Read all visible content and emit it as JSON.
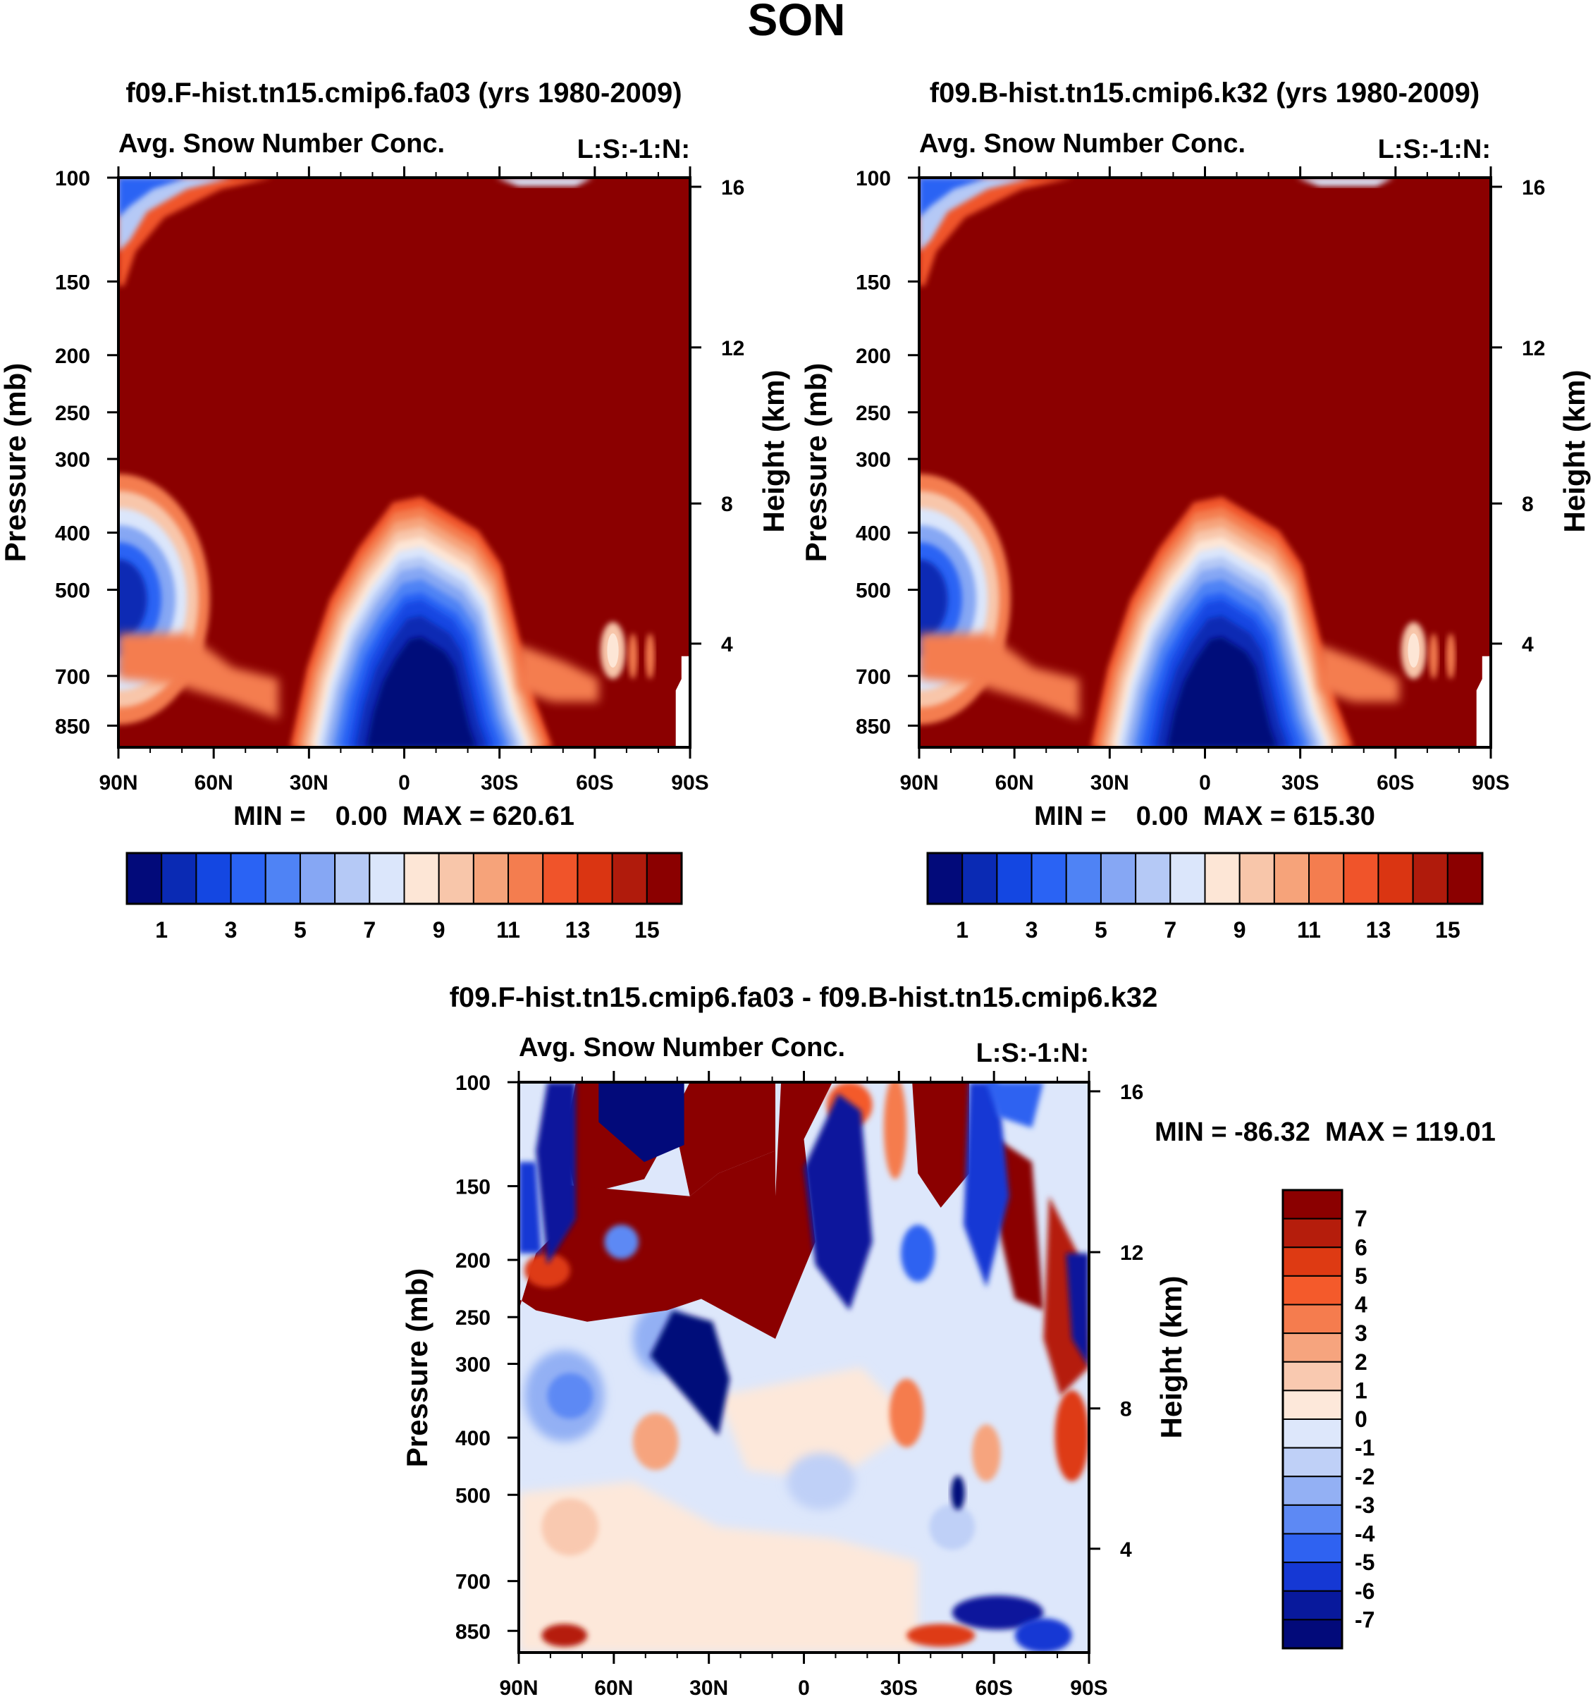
{
  "figure": {
    "title": "SON"
  },
  "panels": [
    {
      "id": "left",
      "case_title": "f09.F-hist.tn15.cmip6.fa03 (yrs 1980-2009)",
      "left_label": "Avg. Snow Number Conc.",
      "right_label": "L:S:-1:N:",
      "min_max": "MIN =    0.00  MAX = 620.61"
    },
    {
      "id": "right",
      "case_title": "f09.B-hist.tn15.cmip6.k32 (yrs 1980-2009)",
      "left_label": "Avg. Snow Number Conc.",
      "right_label": "L:S:-1:N:",
      "min_max": "MIN =    0.00  MAX = 615.30"
    },
    {
      "id": "diff",
      "case_title": "f09.F-hist.tn15.cmip6.fa03 - f09.B-hist.tn15.cmip6.k32",
      "left_label": "Avg. Snow Number Conc.",
      "right_label": "L:S:-1:N:",
      "min_max": "MIN = -86.32  MAX = 119.01"
    }
  ],
  "chart_data": [
    {
      "type": "heatmap",
      "title": "f09.F-hist.tn15.cmip6.fa03 (yrs 1980-2009)",
      "variable": "Avg. Snow Number Conc.",
      "units_label": "L:S:-1:N:",
      "ylabel": "Pressure (mb)",
      "y2label": "Height (km)",
      "x_ticks": [
        "90N",
        "60N",
        "30N",
        "0",
        "30S",
        "60S",
        "90S"
      ],
      "y_ticks": [
        "100",
        "150",
        "200",
        "250",
        "300",
        "400",
        "500",
        "700",
        "850"
      ],
      "y2_ticks": [
        "16",
        "12",
        "8",
        "4"
      ],
      "min": 0.0,
      "max": 620.61,
      "colorbar_labels": [
        "1",
        "3",
        "5",
        "7",
        "9",
        "11",
        "13",
        "15"
      ]
    },
    {
      "type": "heatmap",
      "title": "f09.B-hist.tn15.cmip6.k32 (yrs 1980-2009)",
      "variable": "Avg. Snow Number Conc.",
      "units_label": "L:S:-1:N:",
      "ylabel": "Pressure (mb)",
      "y2label": "Height (km)",
      "x_ticks": [
        "90N",
        "60N",
        "30N",
        "0",
        "30S",
        "60S",
        "90S"
      ],
      "y_ticks": [
        "100",
        "150",
        "200",
        "250",
        "300",
        "400",
        "500",
        "700",
        "850"
      ],
      "y2_ticks": [
        "16",
        "12",
        "8",
        "4"
      ],
      "min": 0.0,
      "max": 615.3,
      "colorbar_labels": [
        "1",
        "3",
        "5",
        "7",
        "9",
        "11",
        "13",
        "15"
      ]
    },
    {
      "type": "heatmap",
      "title": "f09.F-hist.tn15.cmip6.fa03 - f09.B-hist.tn15.cmip6.k32",
      "variable": "Avg. Snow Number Conc.",
      "units_label": "L:S:-1:N:",
      "ylabel": "Pressure (mb)",
      "y2label": "Height (km)",
      "x_ticks": [
        "90N",
        "60N",
        "30N",
        "0",
        "30S",
        "60S",
        "90S"
      ],
      "y_ticks": [
        "100",
        "150",
        "200",
        "250",
        "300",
        "400",
        "500",
        "700",
        "850"
      ],
      "y2_ticks": [
        "16",
        "12",
        "8",
        "4"
      ],
      "min": -86.32,
      "max": 119.01,
      "colorbar_labels": [
        "7",
        "6",
        "5",
        "4",
        "3",
        "2",
        "1",
        "0",
        "-1",
        "-2",
        "-3",
        "-4",
        "-5",
        "-6",
        "-7"
      ]
    }
  ],
  "palettes": {
    "sixteen": [
      "#020a7a",
      "#0a2ab4",
      "#1447e2",
      "#2a63f4",
      "#4f83f5",
      "#86a7f4",
      "#b5c9f6",
      "#dbe6fb",
      "#fde6d6",
      "#f8c6aa",
      "#f6a37a",
      "#f47d4f",
      "#f0542a",
      "#da3512",
      "#b01b0c",
      "#8b0000"
    ],
    "diff": [
      "#8b0000",
      "#b51d0c",
      "#de3a13",
      "#f45a2b",
      "#f57c4e",
      "#f6a47e",
      "#f9c9b0",
      "#fde8da",
      "#dde7fb",
      "#bfd0f7",
      "#93b0f4",
      "#5d89f4",
      "#2f62f1",
      "#1538d4",
      "#08199c",
      "#020a7a"
    ]
  }
}
